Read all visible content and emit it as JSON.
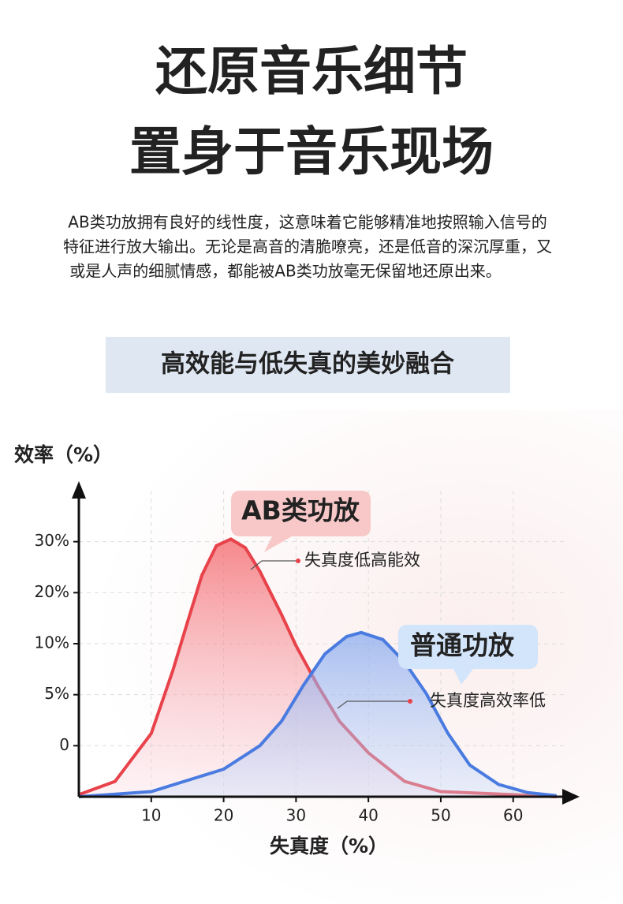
{
  "header": {
    "title_lines": [
      "还原音乐细节",
      "置身于音乐现场"
    ],
    "description_lines": [
      "AB类功放拥有良好的线性度，这意味着它能够精准地按照输入信号的",
      "特征进行放大输出。无论是高音的清脆嘹亮，还是低音的深沉厚重，又",
      "或是人声的细腻情感，都能被AB类功放毫无保留地还原出来。"
    ]
  },
  "banner": "高效能与低失真的美妙融合",
  "chart_data": {
    "type": "area",
    "y_label": "效率（%）",
    "x_label": "失真度（%）",
    "xlim": [
      0,
      67
    ],
    "xticks": [
      10,
      20,
      30,
      40,
      50,
      60
    ],
    "ylim": [
      -5,
      40
    ],
    "y_scale": "tick-spaced",
    "yticks": [
      {
        "value": 0,
        "label": "0"
      },
      {
        "value": 5,
        "label": "5%"
      },
      {
        "value": 10,
        "label": "10%"
      },
      {
        "value": 20,
        "label": "20%"
      },
      {
        "value": 30,
        "label": "30%"
      }
    ],
    "grid": true,
    "series": [
      {
        "name": "AB类功放",
        "color": "#e8424a",
        "annotation": "失真度低高能效",
        "x": [
          0,
          5,
          10,
          13,
          15,
          17,
          19,
          21,
          23,
          25,
          28,
          30,
          33,
          36,
          40,
          45,
          50,
          60,
          66
        ],
        "values": [
          -4.8,
          -3.5,
          1.2,
          7.4,
          14.2,
          23.4,
          29.2,
          30.5,
          28.8,
          24.2,
          15.7,
          9.8,
          5.9,
          2.4,
          -0.7,
          -3.5,
          -4.5,
          -4.8,
          -5
        ]
      },
      {
        "name": "普通功放",
        "color": "#4a7be0",
        "annotation": "失真度高效率低",
        "x": [
          0,
          10,
          20,
          25,
          28,
          31,
          34,
          37,
          39,
          42,
          45,
          48,
          51,
          54,
          58,
          62,
          66
        ],
        "values": [
          -5,
          -4.5,
          -2.3,
          0,
          2.4,
          5.9,
          9,
          11.4,
          12.2,
          10.8,
          8.2,
          5.1,
          1.2,
          -1.9,
          -3.8,
          -4.6,
          -4.9
        ]
      }
    ]
  }
}
